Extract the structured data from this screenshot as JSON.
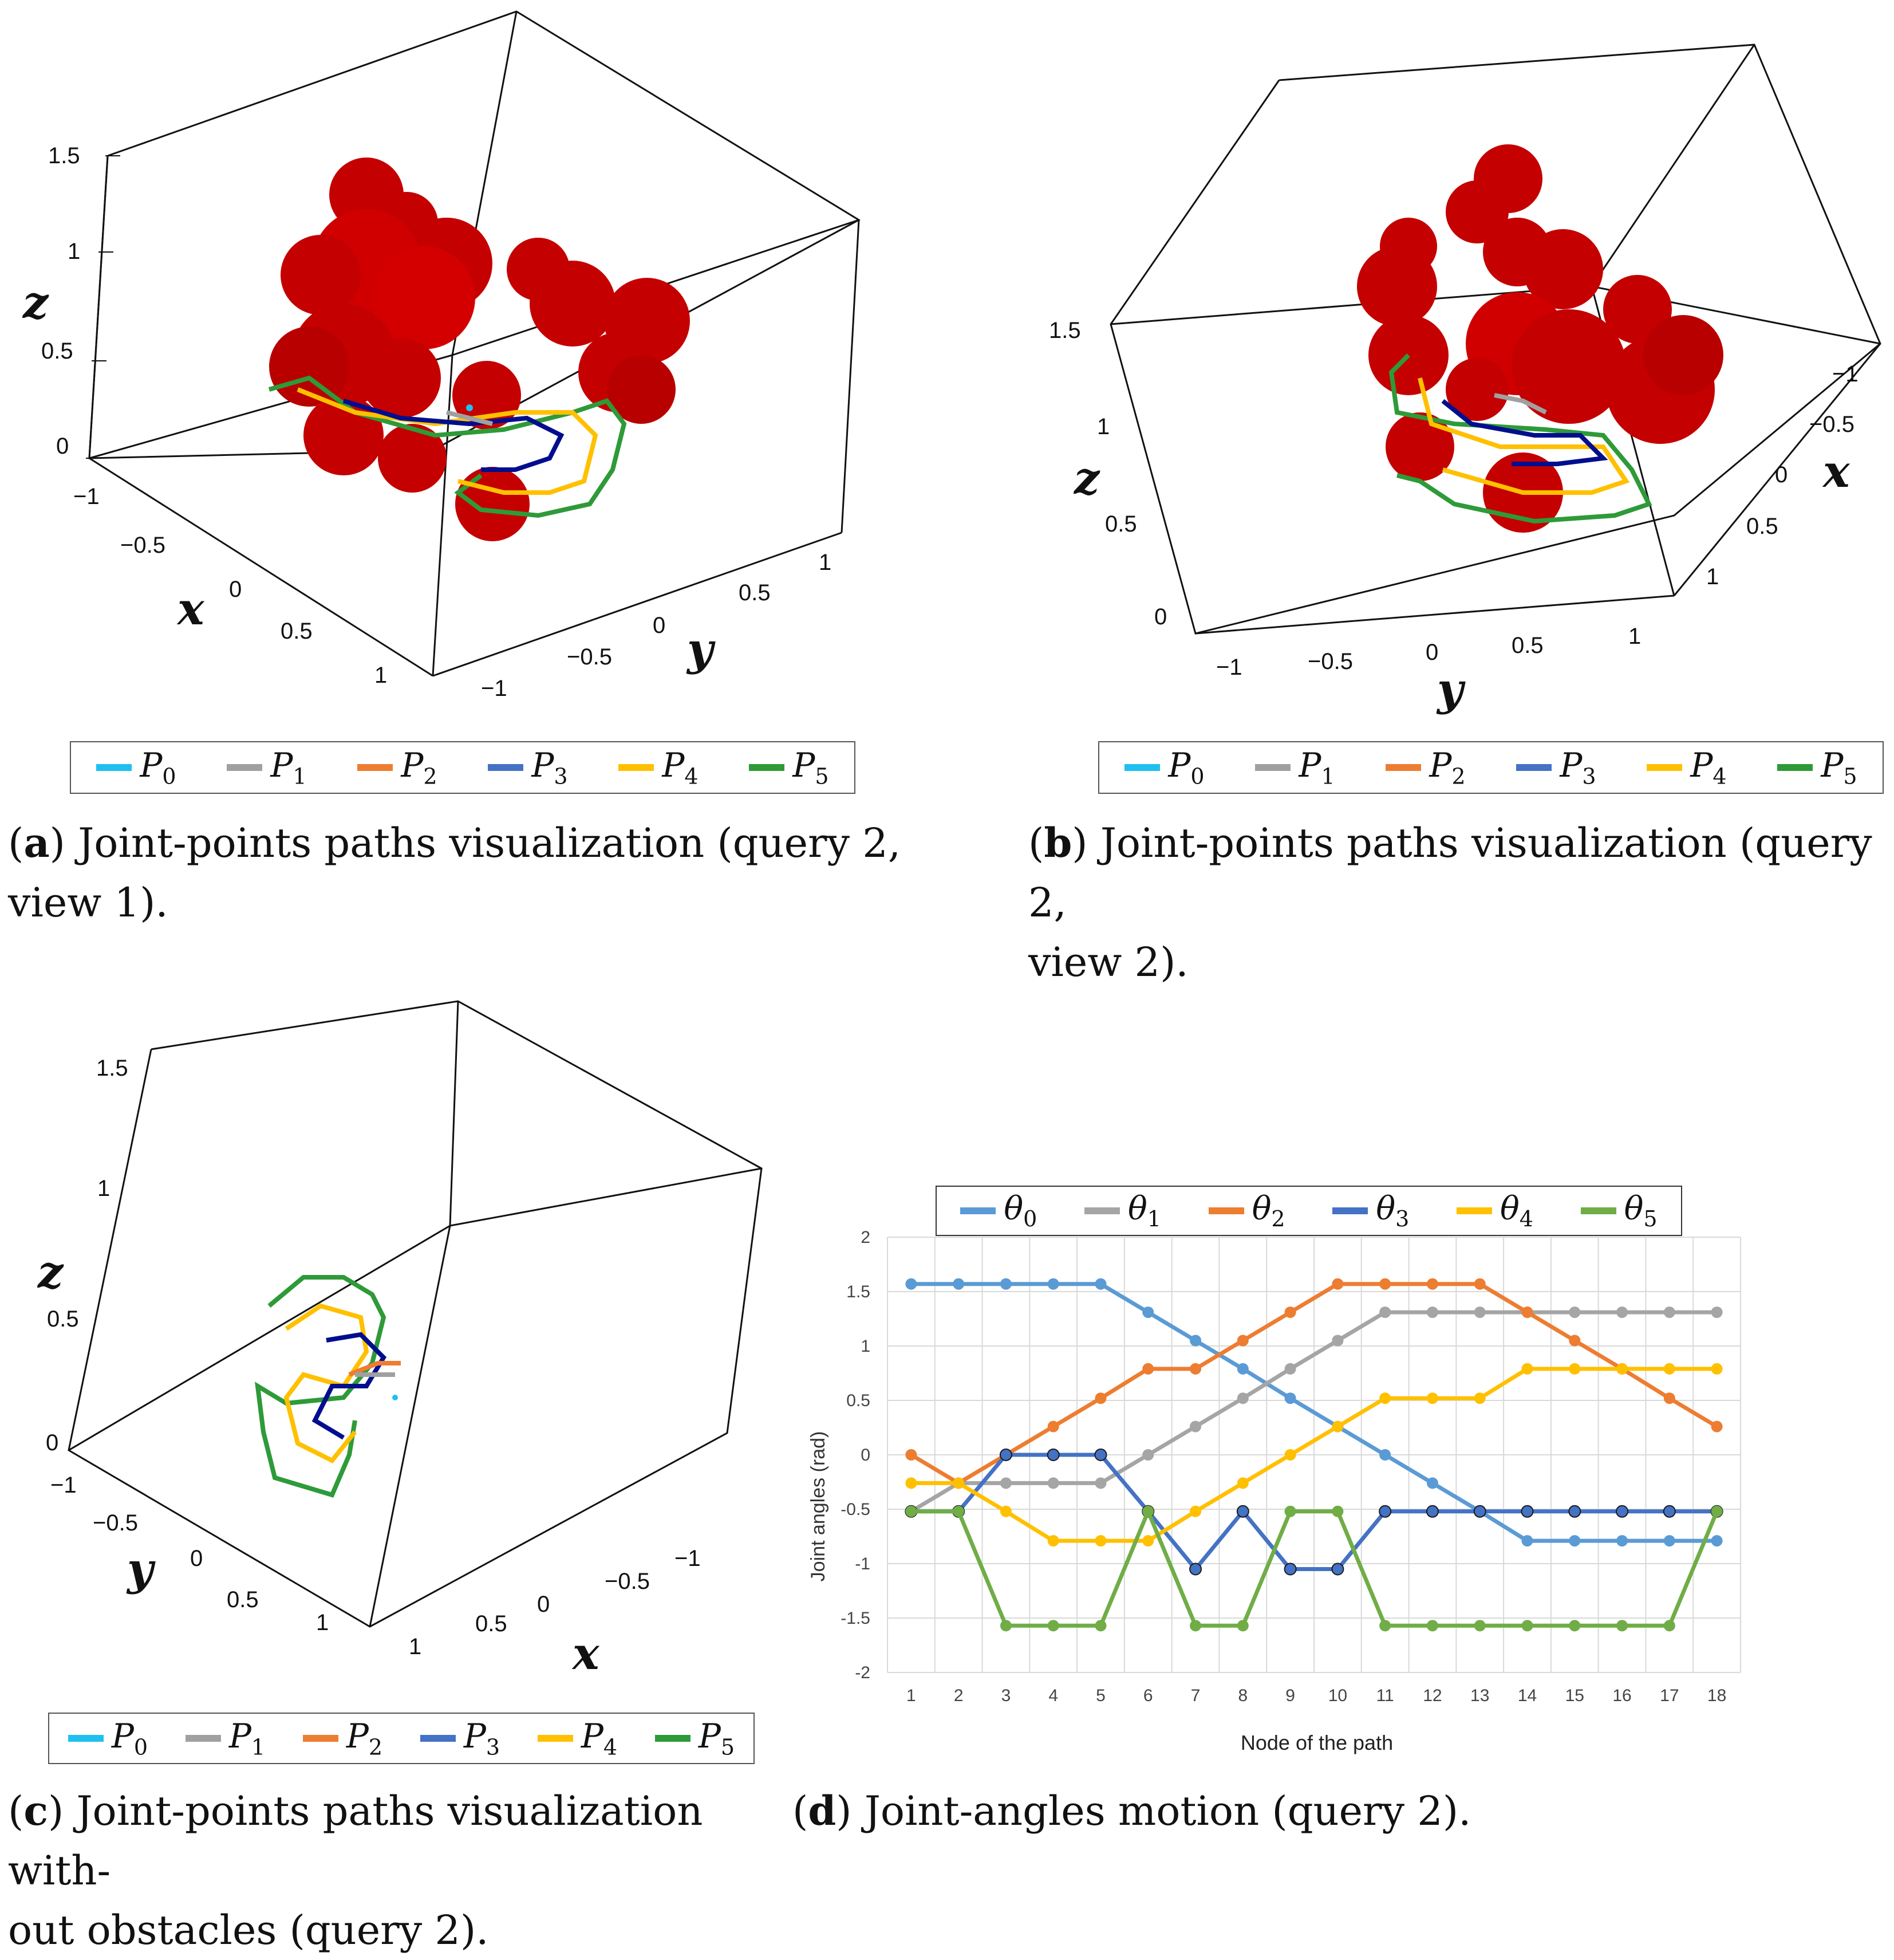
{
  "panels": {
    "a": {
      "caption_letter": "a",
      "caption_line1": ") Joint-points paths visualization (query 2,",
      "caption_line2": "view 1).",
      "ticks_z": [
        "1.5",
        "1",
        "0.5",
        "0"
      ],
      "ticks_x": [
        "−1",
        "−0.5",
        "0",
        "0.5",
        "1"
      ],
      "ticks_y": [
        "−1",
        "−0.5",
        "0",
        "0.5",
        "1"
      ],
      "axis_x": "x",
      "axis_y": "y",
      "axis_z": "z"
    },
    "b": {
      "caption_letter": "b",
      "caption_line1": ") Joint-points paths visualization (query 2,",
      "caption_line2": "view 2).",
      "ticks_z": [
        "1.5",
        "1",
        "0.5",
        "0"
      ],
      "ticks_x": [
        "−1",
        "−0.5",
        "0",
        "0.5",
        "1"
      ],
      "ticks_y": [
        "−1",
        "−0.5",
        "0",
        "0.5",
        "1"
      ],
      "axis_x": "x",
      "axis_y": "y",
      "axis_z": "z"
    },
    "c": {
      "caption_letter": "c",
      "caption_line1": ") Joint-points paths visualization with-",
      "caption_line2": "out obstacles (query 2).",
      "ticks_z": [
        "1.5",
        "1",
        "0.5",
        "0"
      ],
      "ticks_x": [
        "−1",
        "−0.5",
        "0",
        "0.5",
        "1"
      ],
      "ticks_y": [
        "−1",
        "−0.5",
        "0",
        "0.5",
        "1"
      ],
      "axis_x": "x",
      "axis_y": "y",
      "axis_z": "z"
    },
    "d": {
      "caption_letter": "d",
      "caption_line1": ") Joint-angles motion (query 2)."
    }
  },
  "legend_3d": [
    {
      "base": "P",
      "sub": "0",
      "color": "#1ec0f0"
    },
    {
      "base": "P",
      "sub": "1",
      "color": "#a0a0a0"
    },
    {
      "base": "P",
      "sub": "2",
      "color": "#ed7d31"
    },
    {
      "base": "P",
      "sub": "3",
      "color": "#4472c4"
    },
    {
      "base": "P",
      "sub": "4",
      "color": "#ffc000"
    },
    {
      "base": "P",
      "sub": "5",
      "color": "#2e9a38"
    }
  ],
  "chart_data": {
    "type": "line",
    "xlabel": "Node of the path",
    "ylabel": "Joint angles (rad)",
    "categories": [
      "1",
      "2",
      "3",
      "4",
      "5",
      "6",
      "7",
      "8",
      "9",
      "10",
      "11",
      "12",
      "13",
      "14",
      "15",
      "16",
      "17",
      "18"
    ],
    "ylim": [
      -2,
      2
    ],
    "yticks": [
      2,
      1.5,
      1,
      0.5,
      0,
      -0.5,
      -1,
      -1.5,
      -2
    ],
    "ytick_labels": [
      "2",
      "1.5",
      "1",
      "0.5",
      "0",
      "-0.5",
      "-1",
      "-1.5",
      "-2"
    ],
    "grid": true,
    "legend_position": "top",
    "series": [
      {
        "name_base": "θ",
        "name_sub": "0",
        "color": "#5b9bd5",
        "values": [
          1.57,
          1.57,
          1.57,
          1.57,
          1.57,
          1.31,
          1.05,
          0.79,
          0.52,
          0.26,
          0,
          -0.26,
          -0.52,
          -0.79,
          -0.79,
          -0.79,
          -0.79,
          -0.79
        ]
      },
      {
        "name_base": "θ",
        "name_sub": "1",
        "color": "#a5a5a5",
        "values": [
          -0.52,
          -0.26,
          -0.26,
          -0.26,
          -0.26,
          0,
          0.26,
          0.52,
          0.79,
          1.05,
          1.31,
          1.31,
          1.31,
          1.31,
          1.31,
          1.31,
          1.31,
          1.31
        ]
      },
      {
        "name_base": "θ",
        "name_sub": "2",
        "color": "#ed7d31",
        "values": [
          0,
          -0.26,
          0,
          0.26,
          0.52,
          0.79,
          0.79,
          1.05,
          1.31,
          1.57,
          1.57,
          1.57,
          1.57,
          1.31,
          1.05,
          0.79,
          0.52,
          0.26
        ]
      },
      {
        "name_base": "θ",
        "name_sub": "3",
        "color": "#4472c4",
        "values": [
          -0.52,
          -0.52,
          0,
          0,
          0,
          -0.52,
          -1.05,
          -0.52,
          -1.05,
          -1.05,
          -0.52,
          -0.52,
          -0.52,
          -0.52,
          -0.52,
          -0.52,
          -0.52,
          -0.52
        ]
      },
      {
        "name_base": "θ",
        "name_sub": "4",
        "color": "#ffc000",
        "values": [
          -0.26,
          -0.26,
          -0.52,
          -0.79,
          -0.79,
          -0.79,
          -0.52,
          -0.26,
          0,
          0.26,
          0.52,
          0.52,
          0.52,
          0.79,
          0.79,
          0.79,
          0.79,
          0.79
        ]
      },
      {
        "name_base": "θ",
        "name_sub": "5",
        "color": "#70ad47",
        "values": [
          -0.52,
          -0.52,
          -1.57,
          -1.57,
          -1.57,
          -0.52,
          -1.57,
          -1.57,
          -0.52,
          -0.52,
          -1.57,
          -1.57,
          -1.57,
          -1.57,
          -1.57,
          -1.57,
          -1.57,
          -0.52
        ]
      }
    ]
  }
}
